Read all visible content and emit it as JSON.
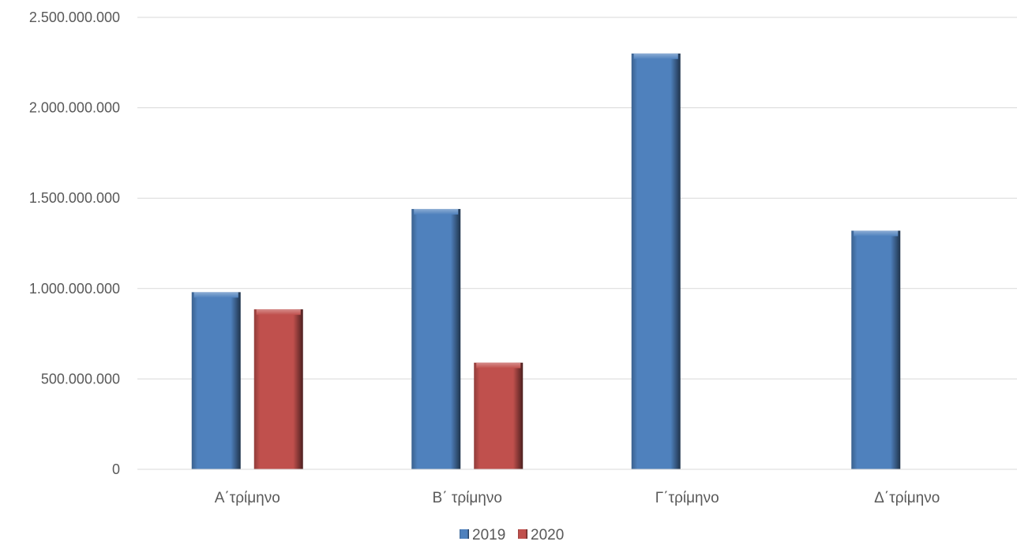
{
  "chart_data": {
    "type": "bar",
    "title": "",
    "xlabel": "",
    "ylabel": "",
    "categories": [
      "Α΄τρίμηνο",
      "Β΄ τρίμηνο",
      "Γ΄τρίμηνο",
      "Δ΄τρίμηνο"
    ],
    "series": [
      {
        "name": "2019",
        "color": "#4F81BD",
        "values": [
          980000000,
          1440000000,
          2300000000,
          1320000000
        ]
      },
      {
        "name": "2020",
        "color": "#C0504D",
        "values": [
          885000000,
          590000000,
          null,
          null
        ]
      }
    ],
    "ylim": [
      0,
      2500000000
    ],
    "yticks": [
      0,
      500000000,
      1000000000,
      1500000000,
      2000000000,
      2500000000
    ],
    "ytick_labels": [
      "0",
      "500.000.000",
      "1.000.000.000",
      "1.500.000.000",
      "2.000.000.000",
      "2.500.000.000"
    ],
    "grid": true,
    "legend": "bottom-center"
  }
}
